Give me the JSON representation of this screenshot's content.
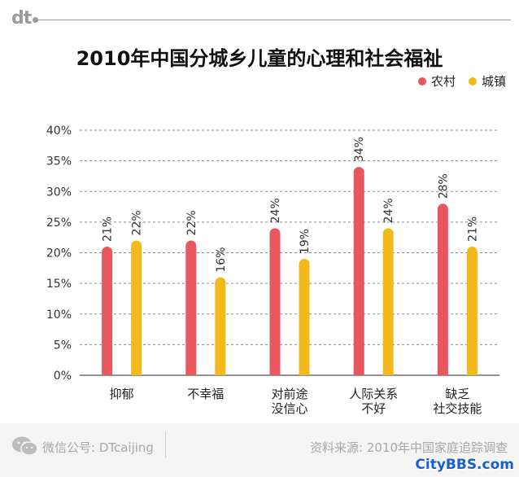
{
  "brand": {
    "logo_text": "dt"
  },
  "chart_data": {
    "type": "bar",
    "title": "2010年中国分城乡儿童的心理和社会福祉",
    "categories": [
      [
        "抑郁"
      ],
      [
        "不幸福"
      ],
      [
        "对前途",
        "没信心"
      ],
      [
        "人际关系",
        "不好"
      ],
      [
        "缺乏",
        "社交技能"
      ]
    ],
    "series": [
      {
        "name": "农村",
        "color": "#e8565e",
        "values": [
          21,
          22,
          24,
          34,
          28
        ],
        "labels": [
          "21%",
          "22%",
          "24%",
          "34%",
          "28%"
        ]
      },
      {
        "name": "城镇",
        "color": "#f2b81c",
        "values": [
          22,
          16,
          19,
          24,
          21
        ],
        "labels": [
          "22%",
          "16%",
          "19%",
          "24%",
          "21%"
        ]
      }
    ],
    "yticks": [
      "0%",
      "5%",
      "10%",
      "15%",
      "20%",
      "25%",
      "30%",
      "35%",
      "40%"
    ],
    "ylim": [
      0,
      40
    ],
    "ystep": 5,
    "grid": true,
    "legend_position": "top-right"
  },
  "footer": {
    "wechat_icon": "wechat-icon",
    "left_text": "微信公号: DTcaijing",
    "right_text": "资料来源: 2010年中国家庭追踪调查"
  },
  "watermark": "CityBBS.com"
}
